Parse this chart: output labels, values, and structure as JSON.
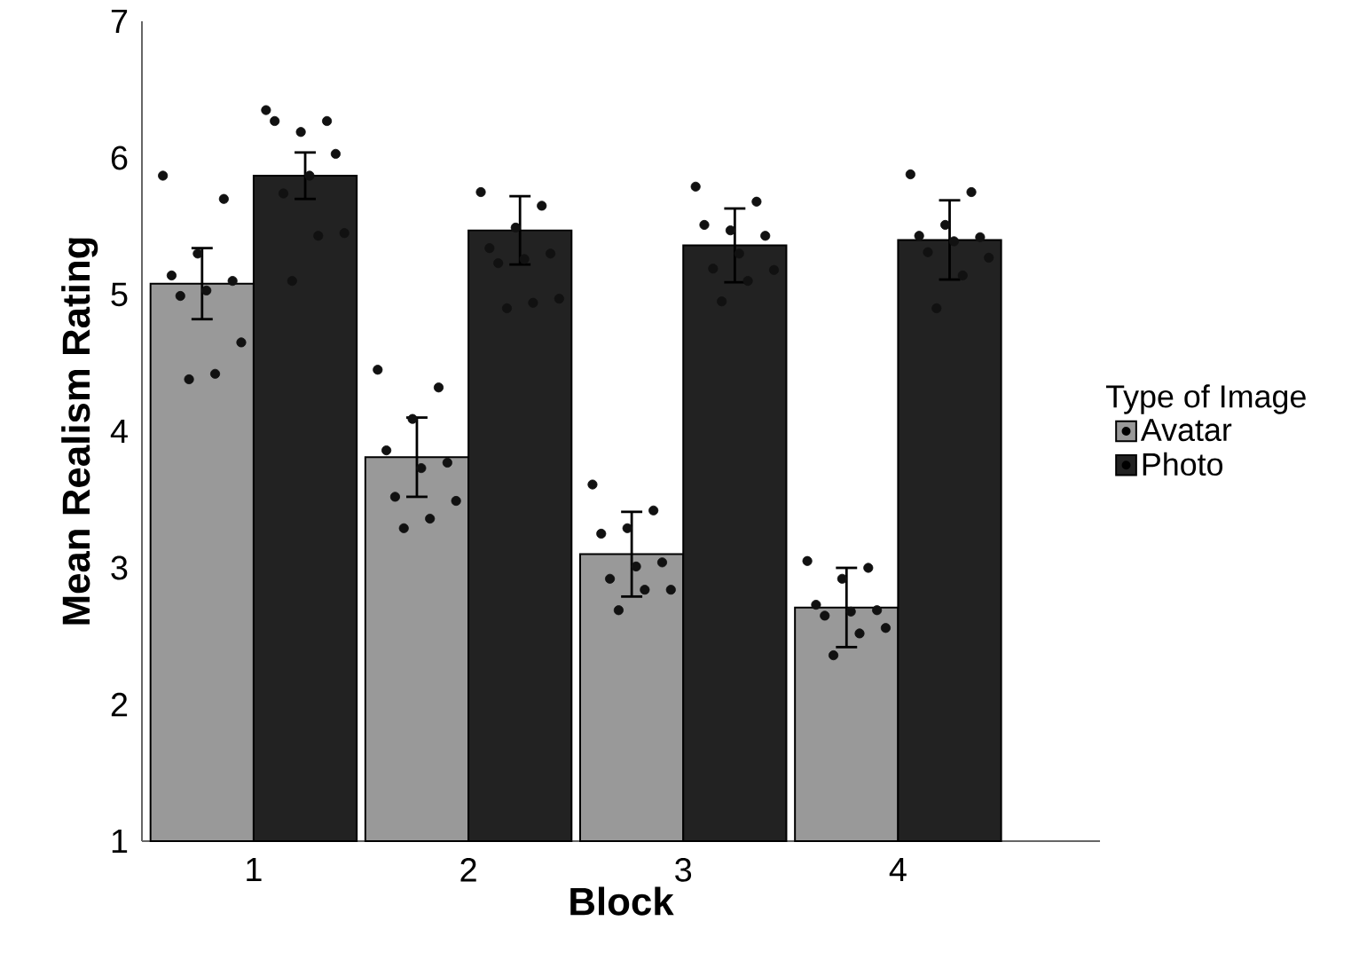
{
  "chart_data": {
    "type": "bar",
    "xlabel": "Block",
    "ylabel": "Mean Realism Rating",
    "legend_title": "Type of Image",
    "categories": [
      "1",
      "2",
      "3",
      "4"
    ],
    "ylim": [
      1,
      7
    ],
    "yticks": [
      1,
      2,
      3,
      4,
      5,
      6,
      7
    ],
    "legend": "right",
    "series": [
      {
        "name": "Avatar",
        "color": "#999999",
        "values": [
          5.08,
          3.81,
          3.1,
          2.71
        ],
        "errors": [
          0.26,
          0.29,
          0.31,
          0.29
        ]
      },
      {
        "name": "Photo",
        "color": "#222222",
        "values": [
          5.87,
          5.47,
          5.36,
          5.4
        ],
        "errors": [
          0.17,
          0.25,
          0.27,
          0.29
        ]
      },
      {
        "type": "scatter",
        "color": "#111111",
        "marker": "circle",
        "x": [
          "1",
          "1",
          "1",
          "1",
          "1",
          "1",
          "1",
          "1",
          "1",
          "1",
          "2",
          "2",
          "2",
          "2",
          "2",
          "2",
          "2",
          "2",
          "2",
          "2",
          "3",
          "3",
          "3",
          "3",
          "3",
          "3",
          "3",
          "3",
          "3",
          "3",
          "4",
          "4",
          "4",
          "4",
          "4",
          "4",
          "4",
          "4",
          "4",
          "4"
        ],
        "values": [
          5.87,
          5.7,
          5.3,
          5.14,
          5.1,
          5.03,
          4.99,
          4.65,
          4.42,
          4.38,
          4.45,
          4.32,
          4.09,
          3.86,
          3.77,
          3.73,
          3.52,
          3.49,
          3.36,
          3.29,
          3.61,
          3.42,
          3.29,
          3.25,
          3.04,
          3.01,
          2.92,
          2.84,
          2.84,
          2.69,
          3.05,
          3.0,
          2.92,
          2.73,
          2.69,
          2.68,
          2.65,
          2.56,
          2.52,
          2.36
        ]
      },
      {
        "type": "scatter",
        "color": "#111111",
        "marker": "circle",
        "x": [
          "1",
          "1",
          "1",
          "1",
          "1",
          "1",
          "1",
          "1",
          "1",
          "1",
          "2",
          "2",
          "2",
          "2",
          "2",
          "2",
          "2",
          "2",
          "2",
          "2",
          "3",
          "3",
          "3",
          "3",
          "3",
          "3",
          "3",
          "3",
          "3",
          "3",
          "4",
          "4",
          "4",
          "4",
          "4",
          "4",
          "4",
          "4",
          "4",
          "4"
        ],
        "values": [
          6.35,
          6.27,
          6.19,
          6.27,
          6.03,
          5.87,
          5.74,
          5.45,
          5.43,
          5.1,
          5.75,
          5.65,
          5.49,
          5.34,
          5.3,
          5.26,
          5.23,
          4.97,
          4.94,
          4.9,
          5.79,
          5.68,
          5.47,
          5.51,
          5.43,
          5.3,
          5.19,
          5.18,
          5.1,
          4.95,
          5.88,
          5.75,
          5.51,
          5.43,
          5.42,
          5.39,
          5.31,
          5.27,
          5.14,
          4.9
        ]
      }
    ]
  }
}
